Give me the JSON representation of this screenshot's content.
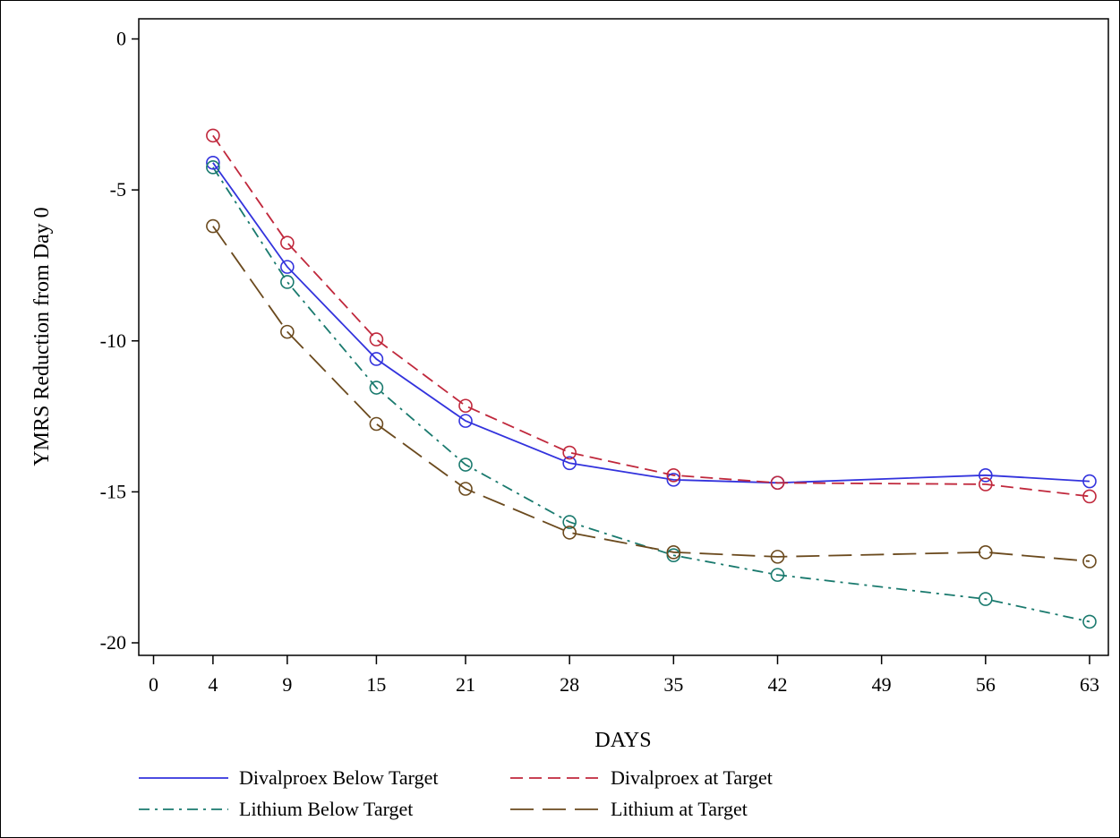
{
  "chart_data": {
    "type": "line",
    "xlabel": "DAYS",
    "ylabel": "YMRS Reduction from Day 0",
    "x": [
      4,
      9,
      15,
      21,
      28,
      35,
      42,
      56,
      63
    ],
    "xticks": [
      0,
      4,
      9,
      15,
      21,
      28,
      35,
      42,
      49,
      56,
      63
    ],
    "yticks": [
      0,
      -5,
      -10,
      -15,
      -20
    ],
    "xlim": [
      -1,
      64
    ],
    "ylim": [
      -20.5,
      0.3
    ],
    "grid": false,
    "legend_position": "bottom",
    "series": [
      {
        "name": "Divalproex Below Target",
        "color": "#3333dd",
        "dash": "solid",
        "values": [
          -4.1,
          -7.55,
          -10.6,
          -12.65,
          -14.05,
          -14.6,
          -14.7,
          -14.45,
          -14.65
        ]
      },
      {
        "name": "Divalproex at Target",
        "color": "#c0283c",
        "dash": "dashed",
        "values": [
          -3.2,
          -6.75,
          -9.95,
          -12.15,
          -13.7,
          -14.45,
          -14.7,
          -14.75,
          -15.15
        ]
      },
      {
        "name": "Lithium Below Target",
        "color": "#1a7a6e",
        "dash": "dashdot",
        "values": [
          -4.25,
          -8.05,
          -11.55,
          -14.1,
          -16.0,
          -17.1,
          -17.75,
          -18.55,
          -19.3
        ]
      },
      {
        "name": "Lithium at Target",
        "color": "#6b4a1e",
        "dash": "longdash",
        "values": [
          -6.2,
          -9.7,
          -12.75,
          -14.9,
          -16.35,
          -17.0,
          -17.15,
          -17.0,
          -17.3
        ]
      }
    ]
  }
}
